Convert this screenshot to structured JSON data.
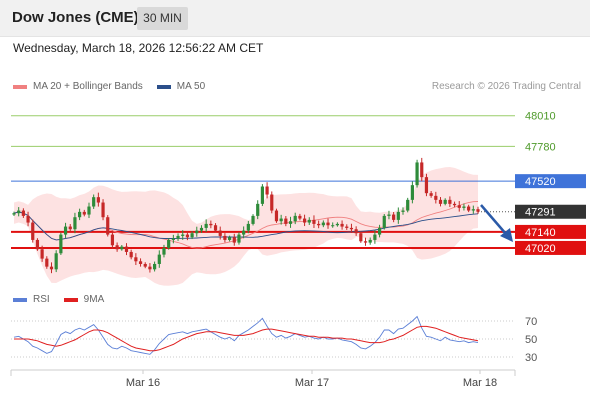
{
  "header": {
    "title": "Dow Jones (CME)",
    "interval": "30 MIN"
  },
  "timestamp": "Wednesday, March 18, 2026 12:56:22 AM CET",
  "price_legend": [
    {
      "label": "MA 20 + Bollinger Bands",
      "color": "#f08080"
    },
    {
      "label": "MA 50",
      "color": "#2b4f8a"
    }
  ],
  "credit": "Research © 2026 Trading Central",
  "rsi_legend": [
    {
      "label": "RSI",
      "color": "#5b7fd6"
    },
    {
      "label": "9MA",
      "color": "#e02020"
    }
  ],
  "colors": {
    "up_candle": "#2e8b3a",
    "down_candle": "#c62828",
    "target_line": "#9acd6a",
    "pivot_line": "#3f73d9",
    "support_line": "#e01010",
    "bands_fill": "#fde2e2",
    "arrow": "#2b5aa8"
  },
  "chart_data": [
    {
      "type": "candlestick",
      "x_ticks": [
        "Mar 16",
        "Mar 17",
        "Mar 18"
      ],
      "yaxis_position": "right",
      "ylim": [
        46780,
        48150
      ],
      "levels": [
        {
          "value": 48010,
          "label": "48010",
          "kind": "target"
        },
        {
          "value": 47780,
          "label": "47780",
          "kind": "target"
        },
        {
          "value": 47520,
          "label": "47520",
          "kind": "pivot"
        },
        {
          "value": 47291,
          "label": "47291",
          "kind": "last"
        },
        {
          "value": 47140,
          "label": "47140",
          "kind": "support"
        },
        {
          "value": 47020,
          "label": "47020",
          "kind": "support"
        }
      ],
      "close": [
        47280,
        47300,
        47260,
        47210,
        47080,
        47010,
        46940,
        46880,
        46860,
        46980,
        47120,
        47180,
        47160,
        47250,
        47290,
        47270,
        47330,
        47400,
        47360,
        47250,
        47120,
        47040,
        47010,
        47030,
        46990,
        46950,
        46920,
        46900,
        46880,
        46860,
        46900,
        46970,
        47020,
        47080,
        47090,
        47110,
        47120,
        47100,
        47130,
        47150,
        47170,
        47200,
        47190,
        47150,
        47110,
        47080,
        47100,
        47060,
        47120,
        47150,
        47200,
        47260,
        47350,
        47480,
        47420,
        47300,
        47220,
        47240,
        47200,
        47220,
        47260,
        47240,
        47210,
        47230,
        47200,
        47190,
        47210,
        47190,
        47190,
        47200,
        47180,
        47170,
        47160,
        47130,
        47070,
        47060,
        47080,
        47120,
        47170,
        47260,
        47270,
        47230,
        47290,
        47300,
        47380,
        47490,
        47660,
        47550,
        47430,
        47410,
        47380,
        47350,
        47380,
        47350,
        47340,
        47320,
        47330,
        47300,
        47310,
        47291
      ],
      "rsi": {
        "ylim": [
          20,
          80
        ],
        "levels": [
          70,
          50,
          30
        ],
        "values": [
          52,
          53,
          50,
          47,
          42,
          40,
          37,
          34,
          36,
          45,
          55,
          58,
          56,
          60,
          62,
          60,
          63,
          66,
          60,
          52,
          44,
          40,
          39,
          42,
          40,
          37,
          36,
          35,
          34,
          33,
          38,
          45,
          50,
          55,
          56,
          57,
          58,
          56,
          58,
          59,
          60,
          61,
          58,
          55,
          52,
          50,
          52,
          48,
          54,
          57,
          60,
          64,
          68,
          73,
          64,
          56,
          52,
          54,
          51,
          53,
          56,
          54,
          52,
          53,
          51,
          50,
          52,
          50,
          50,
          51,
          49,
          48,
          47,
          44,
          40,
          39,
          42,
          46,
          52,
          60,
          60,
          56,
          61,
          62,
          66,
          70,
          75,
          62,
          53,
          52,
          50,
          48,
          52,
          49,
          48,
          47,
          48,
          46,
          47,
          46
        ],
        "ma9": [
          50,
          50,
          50,
          50,
          49,
          48,
          46,
          44,
          43,
          42,
          43,
          45,
          47,
          49,
          52,
          55,
          58,
          60,
          60,
          59,
          57,
          54,
          51,
          48,
          45,
          42,
          40,
          39,
          38,
          37,
          37,
          38,
          40,
          42,
          44,
          47,
          50,
          52,
          54,
          56,
          57,
          58,
          58,
          58,
          57,
          56,
          55,
          54,
          54,
          54,
          55,
          56,
          58,
          60,
          61,
          61,
          60,
          59,
          58,
          57,
          56,
          55,
          54,
          53,
          53,
          52,
          52,
          52,
          51,
          51,
          51,
          50,
          50,
          49,
          48,
          47,
          46,
          46,
          46,
          47,
          49,
          50,
          52,
          54,
          57,
          60,
          63,
          64,
          64,
          63,
          62,
          60,
          58,
          56,
          54,
          52,
          51,
          50,
          49,
          48
        ]
      }
    }
  ]
}
